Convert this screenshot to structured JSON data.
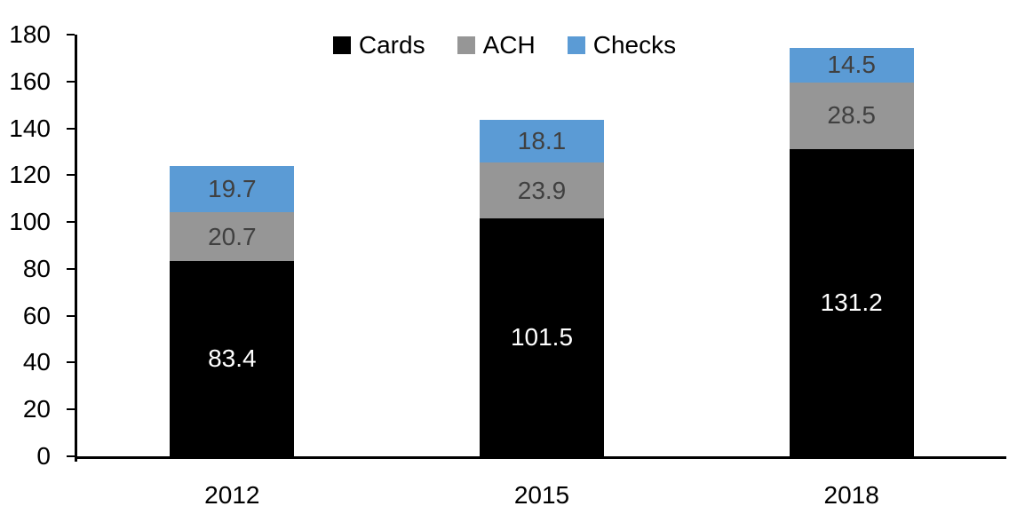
{
  "chart_data": {
    "type": "bar",
    "stacked": true,
    "title": "",
    "xlabel": "",
    "ylabel": "",
    "categories": [
      "2012",
      "2015",
      "2018"
    ],
    "series": [
      {
        "name": "Cards",
        "color": "#000000",
        "label_color": "#ffffff",
        "values": [
          83.4,
          101.5,
          131.2
        ]
      },
      {
        "name": "ACH",
        "color": "#969696",
        "label_color": "#404040",
        "values": [
          20.7,
          23.9,
          28.5
        ]
      },
      {
        "name": "Checks",
        "color": "#5b9bd5",
        "label_color": "#404040",
        "values": [
          19.7,
          18.1,
          14.5
        ]
      }
    ],
    "ylim": [
      0,
      180
    ],
    "yticks": [
      0,
      20,
      40,
      60,
      80,
      100,
      120,
      140,
      160,
      180
    ],
    "grid": false,
    "legend_position": "top-center",
    "axis_color": "#000000",
    "background_color": "#ffffff"
  }
}
